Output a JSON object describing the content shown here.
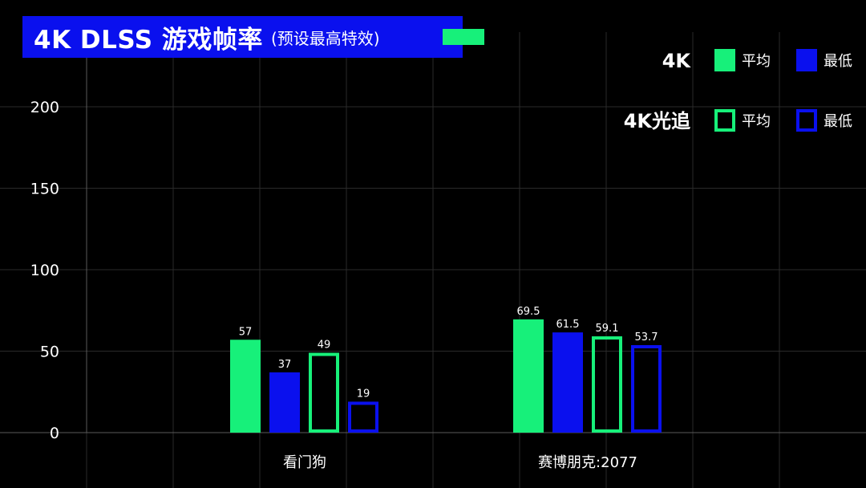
{
  "title": {
    "main": "4K DLSS 游戏帧率",
    "subtitle": "(预设最高特效)"
  },
  "colors": {
    "background": "#000000",
    "title_bg": "#0a10ee",
    "avg": "#17f07a",
    "min": "#0a10ee",
    "grid": "#2a2a2a",
    "text": "#ffffff"
  },
  "legend": {
    "groups": [
      {
        "label": "4K",
        "style": "filled",
        "items": [
          "平均",
          "最低"
        ]
      },
      {
        "label": "4K光追",
        "style": "outline",
        "items": [
          "平均",
          "最低"
        ]
      }
    ]
  },
  "chart_data": {
    "type": "bar",
    "categories": [
      "看门狗",
      "赛博朋克:2077"
    ],
    "series": [
      {
        "name": "4K 平均",
        "style": "filled",
        "color": "#17f07a",
        "values": [
          57,
          69.5
        ]
      },
      {
        "name": "4K 最低",
        "style": "filled",
        "color": "#0a10ee",
        "values": [
          37,
          61.5
        ]
      },
      {
        "name": "4K光追 平均",
        "style": "outline",
        "color": "#17f07a",
        "values": [
          49,
          59.1
        ]
      },
      {
        "name": "4K光追 最低",
        "style": "outline",
        "color": "#0a10ee",
        "values": [
          19,
          53.7
        ]
      }
    ],
    "data_labels": [
      [
        "57",
        "69.5"
      ],
      [
        "37",
        "61.5"
      ],
      [
        "49",
        "59.1"
      ],
      [
        "19",
        "53.7"
      ]
    ],
    "yticks": [
      "0",
      "50",
      "100",
      "150",
      "200"
    ],
    "ylim": [
      0,
      230
    ],
    "grid": true,
    "legend_position": "top-right"
  }
}
